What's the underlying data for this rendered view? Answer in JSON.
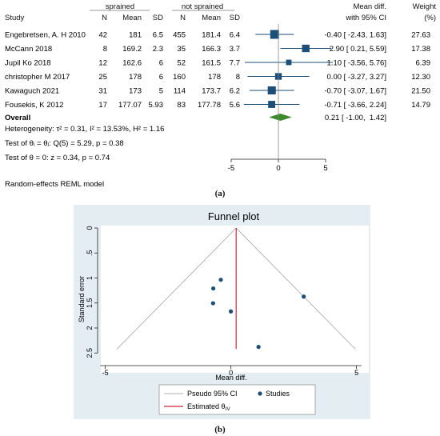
{
  "forest": {
    "header": {
      "study": "Study",
      "group1": "sprained",
      "group2": "not sprained",
      "n": "N",
      "mean": "Mean",
      "sd": "SD",
      "md_line1": "Mean diff.",
      "md_line2": "with 95% CI",
      "weight_line1": "Weight",
      "weight_line2": "(%)"
    },
    "studies": [
      {
        "name": "Engebretsen, A. H 2010",
        "n1": "42",
        "mean1": "181",
        "sd1": "6.5",
        "n2": "455",
        "mean2": "181.4",
        "sd2": "6.4",
        "md": -0.4,
        "lo": -2.43,
        "hi": 1.63,
        "ci_text": "-0.40 [ -2.43,  1.63]",
        "weight": 27.63,
        "weight_text": "27.63"
      },
      {
        "name": "McCann 2018",
        "n1": "8",
        "mean1": "169.2",
        "sd1": "2.3",
        "n2": "35",
        "mean2": "166.3",
        "sd2": "3.7",
        "md": 2.9,
        "lo": 0.21,
        "hi": 5.59,
        "ci_text": "2.90 [  0.21,  5.59]",
        "weight": 17.38,
        "weight_text": "17.38"
      },
      {
        "name": "Jupil Ko 2018",
        "n1": "12",
        "mean1": "162.6",
        "sd1": "6",
        "n2": "52",
        "mean2": "161.5",
        "sd2": "7.7",
        "md": 1.1,
        "lo": -3.56,
        "hi": 5.76,
        "ci_text": "1.10 [ -3.56,  5.76]",
        "weight": 6.39,
        "weight_text": "6.39"
      },
      {
        "name": "christopher M 2017",
        "n1": "25",
        "mean1": "178",
        "sd1": "6",
        "n2": "160",
        "mean2": "178",
        "sd2": "8",
        "md": 0.0,
        "lo": -3.27,
        "hi": 3.27,
        "ci_text": "0.00 [ -3.27,  3.27]",
        "weight": 12.3,
        "weight_text": "12.30"
      },
      {
        "name": "Kawaguch 2021",
        "n1": "31",
        "mean1": "173",
        "sd1": "5",
        "n2": "114",
        "mean2": "173.7",
        "sd2": "6.2",
        "md": -0.7,
        "lo": -3.07,
        "hi": 1.67,
        "ci_text": "-0.70 [ -3.07,  1.67]",
        "weight": 21.5,
        "weight_text": "21.50"
      },
      {
        "name": "Fousekis, K 2012",
        "n1": "17",
        "mean1": "177.07",
        "sd1": "5.93",
        "n2": "83",
        "mean2": "177.78",
        "sd2": "5.6",
        "md": -0.71,
        "lo": -3.66,
        "hi": 2.24,
        "ci_text": "-0.71 [ -3.66,  2.24]",
        "weight": 14.79,
        "weight_text": "14.79"
      }
    ],
    "overall": {
      "label": "Overall",
      "md": 0.21,
      "lo": -1.0,
      "hi": 1.42,
      "ci_text": "0.21 [ -1.00,  1.42]"
    },
    "heterogeneity": "Heterogeneity: τ² = 0.31, I² = 13.53%, H² = 1.16",
    "test_theta_i": "Test of θᵢ = θⱼ: Q(5) = 5.29, p = 0.38",
    "test_theta": "Test of θ = 0: z = 0.34, p = 0.74",
    "model": "Random-effects REML model",
    "axis_ticks": [
      -5,
      0,
      5
    ],
    "colors": {
      "marker": "#1b4e78",
      "overall": "#3a8a2a"
    }
  },
  "caption_a": "(a)",
  "funnel": {
    "title": "Funnel plot",
    "xlabel": "Mean diff.",
    "ylabel": "Standard error",
    "x_ticks": [
      -5,
      0,
      5
    ],
    "y_ticks": [
      "0",
      ".5",
      "1",
      "1.5",
      "2",
      "2.5"
    ],
    "y_tick_values": [
      0,
      0.5,
      1,
      1.5,
      2,
      2.5
    ],
    "legend": {
      "pseudo_ci": "Pseudo 95% CI",
      "studies": "Studies",
      "estimated": "Estimated θ"
    },
    "estimated_sub": "IV",
    "pooled": 0.21,
    "points": [
      {
        "md": -0.4,
        "se": 1.035
      },
      {
        "md": 2.9,
        "se": 1.372
      },
      {
        "md": 1.1,
        "se": 2.378
      },
      {
        "md": 0.0,
        "se": 1.668
      },
      {
        "md": -0.7,
        "se": 1.209
      },
      {
        "md": -0.71,
        "se": 1.505
      }
    ],
    "colors": {
      "points": "#1b4e78",
      "estimate": "#d0243c",
      "ci": "#999999",
      "panel_bg": "#e4eef2"
    }
  },
  "caption_b": "(b)"
}
